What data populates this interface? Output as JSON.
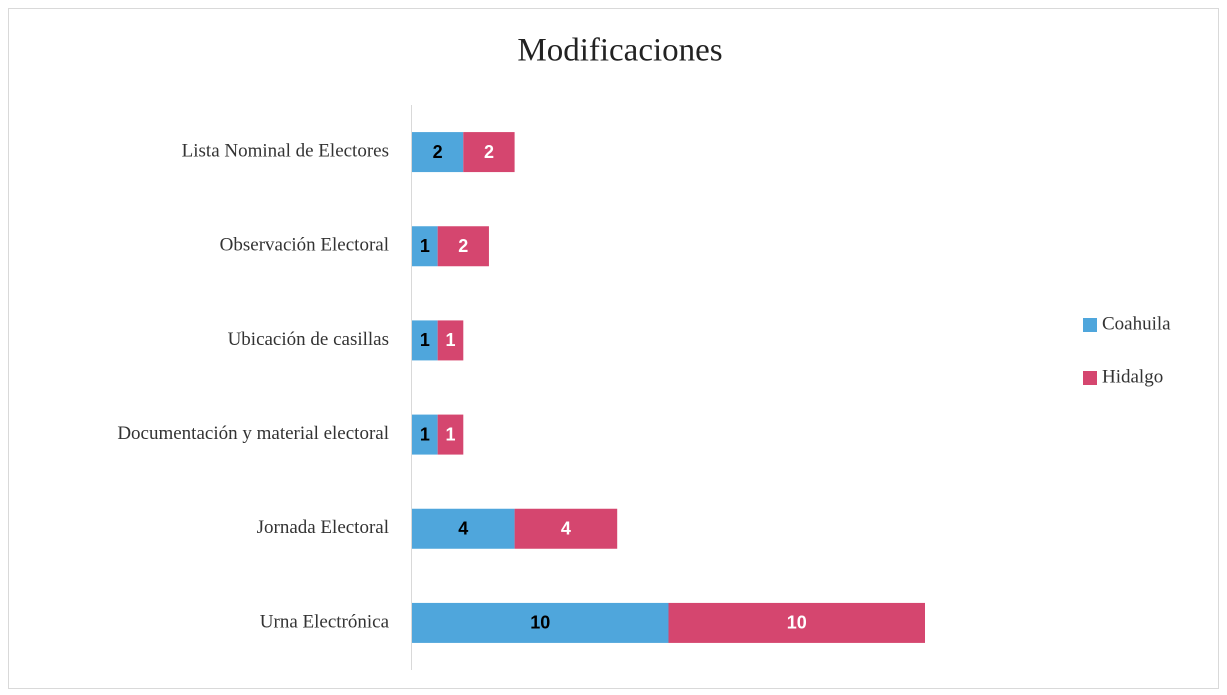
{
  "chart_data": {
    "type": "stacked-barh",
    "title": "Modificaciones",
    "categories": [
      "Lista Nominal de Electores",
      "Observación Electoral",
      "Ubicación de casillas",
      "Documentación y material electoral",
      "Jornada Electoral",
      "Urna Electrónica"
    ],
    "series": [
      {
        "name": "Coahuila",
        "color": "#4fa6dc",
        "label_color": "#000000",
        "values": [
          2,
          1,
          1,
          1,
          4,
          10
        ]
      },
      {
        "name": "Hidalgo",
        "color": "#d5466f",
        "label_color": "#ffffff",
        "values": [
          2,
          2,
          1,
          1,
          4,
          10
        ]
      }
    ],
    "legend": "right"
  }
}
